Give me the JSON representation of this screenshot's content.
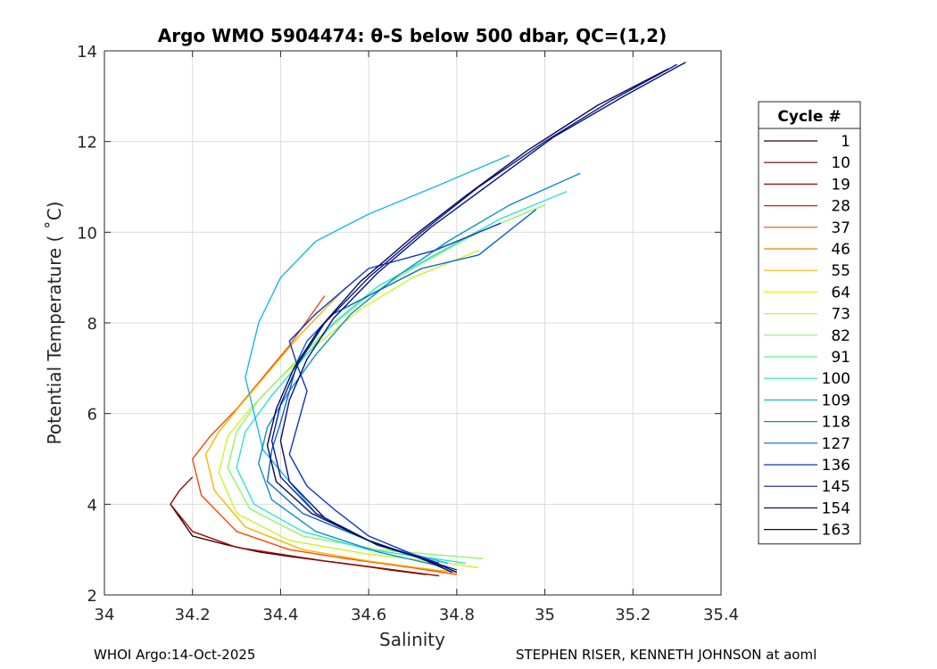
{
  "chart_data": {
    "type": "line",
    "title": "Argo WMO 5904474: θ-S below 500 dbar,  QC=(1,2)",
    "xlabel": "Salinity",
    "ylabel": "Potential Temperature ( ˚C)",
    "xlim": [
      34,
      35.4
    ],
    "ylim": [
      2,
      14
    ],
    "xticks": [
      "34",
      "34.2",
      "34.4",
      "34.6",
      "34.8",
      "35",
      "35.2",
      "35.4"
    ],
    "yticks": [
      "2",
      "4",
      "6",
      "8",
      "10",
      "12",
      "14"
    ],
    "grid": true,
    "legend": {
      "title": "Cycle #",
      "placement": "outside-right",
      "entries": [
        {
          "label": "1",
          "color": "#3a0000"
        },
        {
          "label": "10",
          "color": "#6e0000"
        },
        {
          "label": "19",
          "color": "#a30000"
        },
        {
          "label": "28",
          "color": "#d81a00"
        },
        {
          "label": "37",
          "color": "#f24a00"
        },
        {
          "label": "46",
          "color": "#f57d00"
        },
        {
          "label": "55",
          "color": "#f8b500"
        },
        {
          "label": "64",
          "color": "#fbe800"
        },
        {
          "label": "73",
          "color": "#c9f52a"
        },
        {
          "label": "82",
          "color": "#8ef566"
        },
        {
          "label": "91",
          "color": "#5cf0a0"
        },
        {
          "label": "100",
          "color": "#2ee0d6"
        },
        {
          "label": "109",
          "color": "#16b6f0"
        },
        {
          "label": "118",
          "color": "#0a8fcc"
        },
        {
          "label": "127",
          "color": "#0a5fd8"
        },
        {
          "label": "136",
          "color": "#0e34c8"
        },
        {
          "label": "145",
          "color": "#0a1a9a"
        },
        {
          "label": "154",
          "color": "#071274"
        },
        {
          "label": "163",
          "color": "#040b4c"
        }
      ]
    },
    "series": [
      {
        "cycle": "1",
        "color": "#3a0000",
        "x": [
          34.15,
          34.2,
          34.28,
          34.35,
          34.42,
          34.5,
          34.58,
          34.65,
          34.73
        ],
        "y": [
          4.0,
          3.3,
          3.1,
          2.95,
          2.85,
          2.75,
          2.65,
          2.55,
          2.45
        ]
      },
      {
        "cycle": "19",
        "color": "#a30000",
        "x": [
          34.2,
          34.17,
          34.15,
          34.2,
          34.3,
          34.4,
          34.5,
          34.62,
          34.76
        ],
        "y": [
          4.6,
          4.3,
          4.0,
          3.4,
          3.05,
          2.9,
          2.75,
          2.6,
          2.42
        ]
      },
      {
        "cycle": "37",
        "color": "#f24a00",
        "x": [
          34.5,
          34.42,
          34.36,
          34.3,
          34.24,
          34.2,
          34.22,
          34.3,
          34.42,
          34.55,
          34.7,
          34.8
        ],
        "y": [
          8.6,
          7.5,
          6.8,
          6.1,
          5.5,
          5.0,
          4.2,
          3.4,
          3.0,
          2.8,
          2.6,
          2.45
        ]
      },
      {
        "cycle": "55",
        "color": "#f8b500",
        "x": [
          34.55,
          34.45,
          34.38,
          34.31,
          34.26,
          34.23,
          34.25,
          34.32,
          34.45,
          34.6,
          34.75,
          34.8
        ],
        "y": [
          8.8,
          7.8,
          7.0,
          6.2,
          5.6,
          5.1,
          4.3,
          3.5,
          3.0,
          2.75,
          2.55,
          2.5
        ]
      },
      {
        "cycle": "73",
        "color": "#c9f52a",
        "x": [
          34.85,
          34.7,
          34.58,
          34.48,
          34.4,
          34.33,
          34.28,
          34.26,
          34.3,
          34.42,
          34.6,
          34.78,
          34.85
        ],
        "y": [
          9.6,
          9.0,
          8.3,
          7.5,
          6.8,
          6.1,
          5.5,
          4.7,
          3.8,
          3.2,
          2.9,
          2.7,
          2.6
        ]
      },
      {
        "cycle": "82",
        "color": "#8ef566",
        "x": [
          35.0,
          34.85,
          34.7,
          34.6,
          34.5,
          34.42,
          34.35,
          34.3,
          34.28,
          34.33,
          34.45,
          34.62,
          34.8,
          34.86
        ],
        "y": [
          10.6,
          10.0,
          9.2,
          8.6,
          7.8,
          7.0,
          6.3,
          5.6,
          4.8,
          3.9,
          3.3,
          3.0,
          2.85,
          2.8
        ]
      },
      {
        "cycle": "100",
        "color": "#2ee0d6",
        "x": [
          35.05,
          34.9,
          34.75,
          34.62,
          34.52,
          34.45,
          34.38,
          34.32,
          34.3,
          34.34,
          34.45,
          34.6,
          34.75,
          34.82
        ],
        "y": [
          10.9,
          10.3,
          9.5,
          8.8,
          8.0,
          7.2,
          6.4,
          5.6,
          4.8,
          4.0,
          3.4,
          3.0,
          2.8,
          2.7
        ]
      },
      {
        "cycle": "109",
        "color": "#16b6f0",
        "x": [
          34.92,
          34.75,
          34.6,
          34.48,
          34.4,
          34.35,
          34.32,
          34.36,
          34.48,
          34.62,
          34.78
        ],
        "y": [
          11.7,
          11.0,
          10.4,
          9.8,
          9.0,
          8.0,
          6.8,
          5.2,
          3.8,
          3.1,
          2.7
        ]
      },
      {
        "cycle": "118",
        "color": "#0a8fcc",
        "x": [
          35.08,
          34.92,
          34.78,
          34.66,
          34.56,
          34.48,
          34.42,
          34.37,
          34.35,
          34.38,
          34.48,
          34.62,
          34.78
        ],
        "y": [
          11.3,
          10.6,
          9.8,
          9.0,
          8.2,
          7.3,
          6.5,
          5.7,
          4.9,
          4.1,
          3.4,
          2.95,
          2.6
        ]
      },
      {
        "cycle": "127",
        "color": "#0a5fd8",
        "x": [
          34.98,
          34.85,
          34.72,
          34.6,
          34.52,
          34.46,
          34.44,
          34.42,
          34.4,
          34.38,
          34.37,
          34.45,
          34.6,
          34.72,
          34.78
        ],
        "y": [
          10.5,
          9.5,
          9.2,
          8.6,
          8.2,
          7.6,
          7.2,
          6.5,
          5.8,
          5.2,
          4.5,
          3.8,
          3.2,
          2.8,
          2.6
        ]
      },
      {
        "cycle": "136",
        "color": "#0e34c8",
        "x": [
          34.9,
          34.75,
          34.6,
          34.48,
          34.42,
          34.44,
          34.46,
          34.44,
          34.42,
          34.46,
          34.52,
          34.6,
          34.7,
          34.76
        ],
        "y": [
          10.2,
          9.6,
          9.2,
          8.2,
          7.6,
          7.0,
          6.5,
          5.8,
          5.1,
          4.4,
          3.9,
          3.3,
          2.9,
          2.7
        ]
      },
      {
        "cycle": "145",
        "color": "#0a1a9a",
        "x": [
          35.3,
          35.15,
          35.0,
          34.85,
          34.72,
          34.6,
          34.5,
          34.44,
          34.4,
          34.38,
          34.4,
          34.48,
          34.6,
          34.72,
          34.8
        ],
        "y": [
          13.7,
          12.9,
          12.0,
          11.0,
          10.0,
          9.0,
          8.0,
          7.1,
          6.2,
          5.4,
          4.6,
          3.8,
          3.2,
          2.8,
          2.55
        ]
      },
      {
        "cycle": "154",
        "color": "#071274",
        "x": [
          35.32,
          35.18,
          35.02,
          34.88,
          34.74,
          34.62,
          34.52,
          34.46,
          34.42,
          34.4,
          34.42,
          34.5,
          34.62,
          34.74,
          34.8
        ],
        "y": [
          13.75,
          13.0,
          12.1,
          11.1,
          10.1,
          9.1,
          8.1,
          7.2,
          6.3,
          5.4,
          4.5,
          3.7,
          3.1,
          2.75,
          2.5
        ]
      },
      {
        "cycle": "163",
        "color": "#040b4c",
        "x": [
          35.28,
          35.12,
          34.96,
          34.82,
          34.7,
          34.58,
          34.49,
          34.43,
          34.39,
          34.37,
          34.39,
          34.47,
          34.6,
          34.72,
          34.79
        ],
        "y": [
          13.6,
          12.8,
          11.8,
          10.8,
          9.9,
          8.9,
          7.9,
          7.0,
          6.1,
          5.3,
          4.5,
          3.8,
          3.2,
          2.8,
          2.5
        ]
      }
    ]
  },
  "footer": {
    "left": "WHOI Argo:14-Oct-2025",
    "right": "STEPHEN RISER, KENNETH JOHNSON at aoml"
  }
}
